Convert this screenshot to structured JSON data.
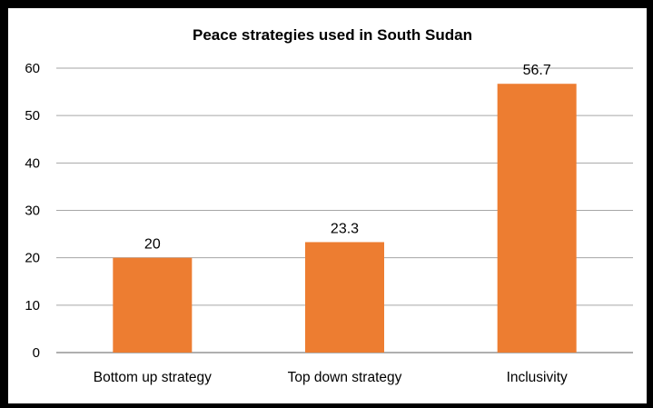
{
  "chart_data": {
    "type": "bar",
    "title": "Peace strategies used in South Sudan",
    "categories": [
      "Bottom up strategy",
      "Top down strategy",
      "Inclusivity"
    ],
    "values": [
      20,
      23.3,
      56.7
    ],
    "data_labels": [
      "20",
      "23.3",
      "56.7"
    ],
    "xlabel": "",
    "ylabel": "",
    "ylim": [
      0,
      60
    ],
    "yticks": [
      "0",
      "10",
      "20",
      "30",
      "40",
      "50",
      "60"
    ],
    "grid": true,
    "legend": "none",
    "bar_color": "#ED7D31",
    "gridline_color": "#A6A6A6"
  }
}
